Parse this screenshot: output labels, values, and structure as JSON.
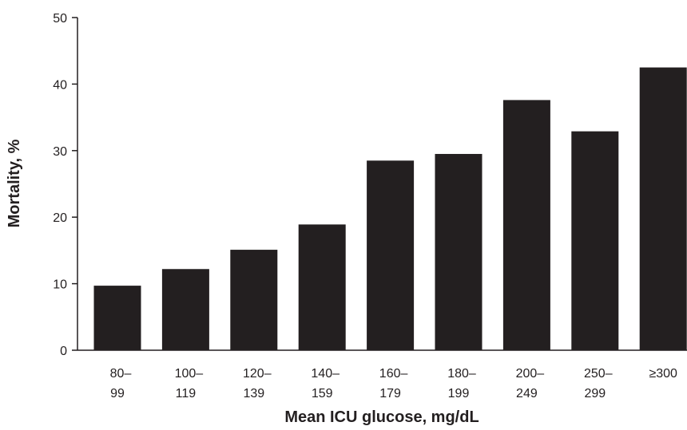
{
  "chart_data": {
    "type": "bar",
    "x_label": "Mean ICU glucose, mg/dL",
    "y_label": "Mortality, %",
    "categories": [
      "80–99",
      "100–119",
      "120–139",
      "140–159",
      "160–179",
      "180–199",
      "200–249",
      "250–299",
      "≥300"
    ],
    "values": [
      9.7,
      12.2,
      15.1,
      18.9,
      28.5,
      29.5,
      37.6,
      32.9,
      42.5
    ],
    "color": "#231f20",
    "ylim": [
      0,
      50
    ],
    "yticks": [
      0,
      10,
      20,
      30,
      40,
      50
    ],
    "grid": false
  }
}
